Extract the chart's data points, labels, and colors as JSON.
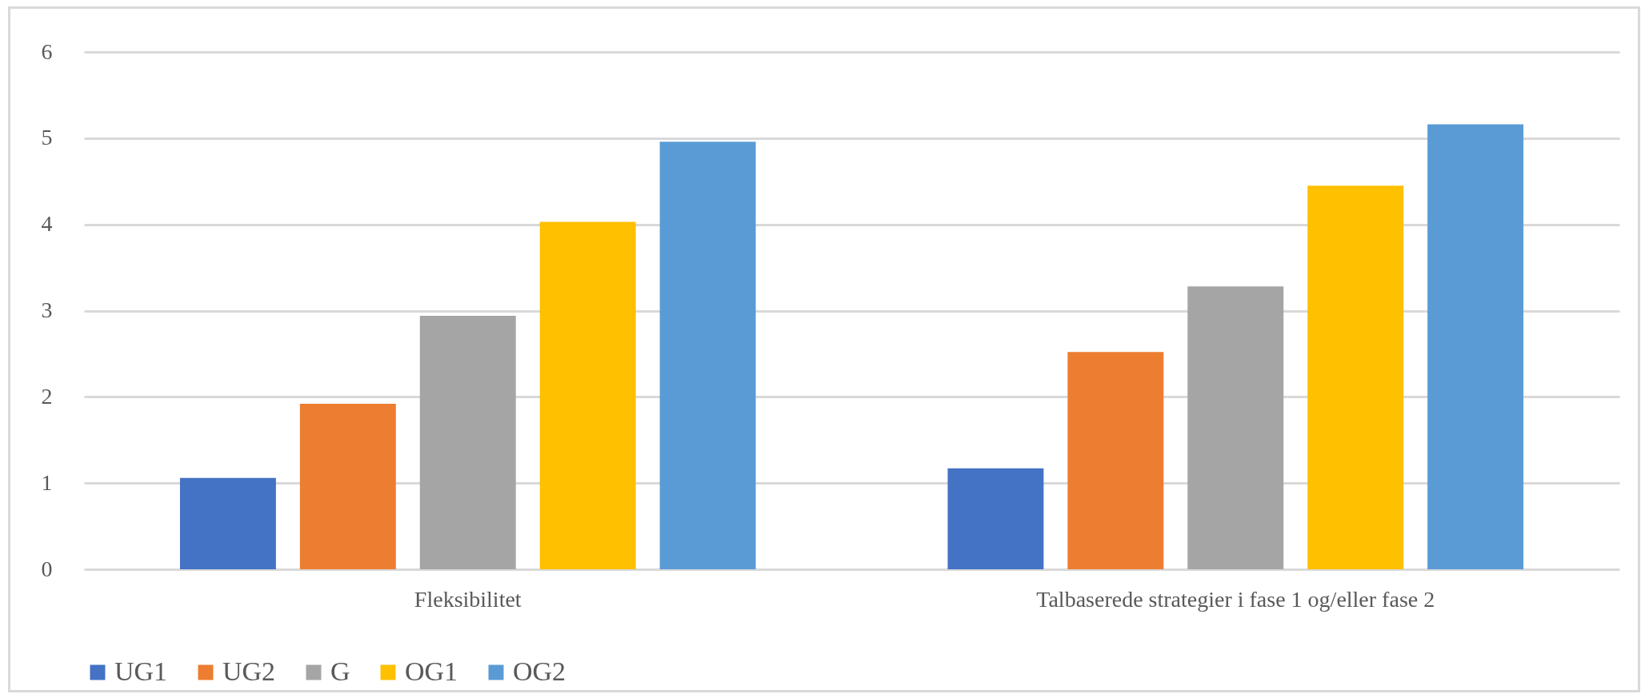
{
  "chart_data": {
    "type": "bar",
    "categories": [
      "Fleksibilitet",
      "Talbaserede strategier i fase 1 og/eller fase 2"
    ],
    "series": [
      {
        "name": "UG1",
        "color": "#4472c4",
        "values": [
          1.06,
          1.17
        ]
      },
      {
        "name": "UG2",
        "color": "#ed7d31",
        "values": [
          1.92,
          2.52
        ]
      },
      {
        "name": "G",
        "color": "#a5a5a5",
        "values": [
          2.94,
          3.28
        ]
      },
      {
        "name": "OG1",
        "color": "#ffc000",
        "values": [
          4.03,
          4.45
        ]
      },
      {
        "name": "OG2",
        "color": "#5b9bd5",
        "values": [
          4.96,
          5.16
        ]
      }
    ],
    "ylim": [
      0,
      6
    ],
    "yticks": [
      0,
      1,
      2,
      3,
      4,
      5,
      6
    ],
    "grid": "y",
    "legend": "bottom"
  }
}
